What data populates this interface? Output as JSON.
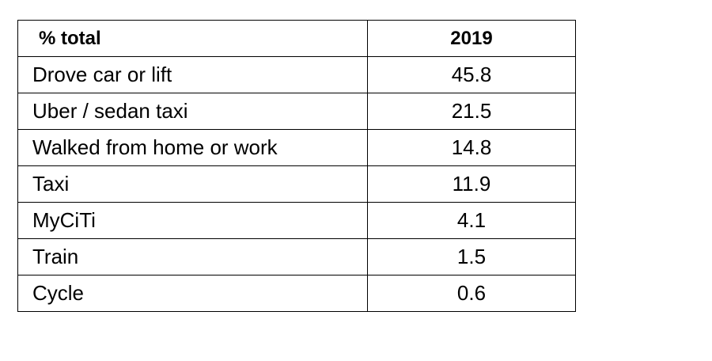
{
  "chart_data": {
    "type": "table",
    "columns": [
      "% total",
      "2019"
    ],
    "rows": [
      {
        "label": "Drove car or lift",
        "value": "45.8"
      },
      {
        "label": "Uber / sedan taxi",
        "value": "21.5"
      },
      {
        "label": "Walked from home or work",
        "value": "14.8"
      },
      {
        "label": "Taxi",
        "value": "11.9"
      },
      {
        "label": "MyCiTi",
        "value": "4.1"
      },
      {
        "label": "Train",
        "value": "1.5"
      },
      {
        "label": "Cycle",
        "value": "0.6"
      }
    ]
  }
}
